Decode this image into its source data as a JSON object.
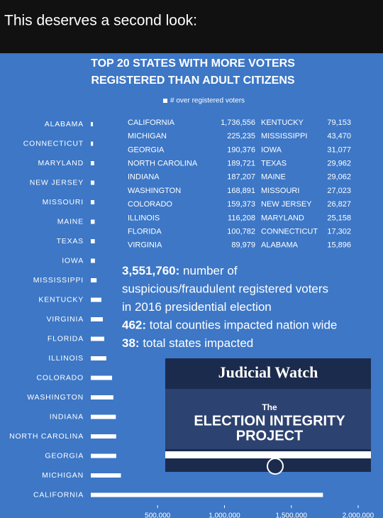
{
  "post": {
    "caption": "This deserves a second look:"
  },
  "chart_data": {
    "type": "bar",
    "orientation": "horizontal",
    "title": [
      "TOP 20 STATES WITH MORE VOTERS",
      "REGISTERED THAN ADULT CITIZENS"
    ],
    "categories": [
      "ALABAMA",
      "CONNECTICUT",
      "MARYLAND",
      "NEW JERSEY",
      "MISSOURI",
      "MAINE",
      "TEXAS",
      "IOWA",
      "MISSISSIPPI",
      "KENTUCKY",
      "VIRGINIA",
      "FLORIDA",
      "ILLINOIS",
      "COLORADO",
      "WASHINGTON",
      "INDIANA",
      "NORTH CAROLINA",
      "GEORGIA",
      "MICHIGAN",
      "CALIFORNIA"
    ],
    "series": [
      {
        "name": "# over registered voters",
        "color": "#ffffff",
        "values": [
          15896,
          17302,
          25158,
          26827,
          27023,
          29062,
          29962,
          31077,
          43470,
          79153,
          89979,
          100782,
          116208,
          159373,
          168891,
          187207,
          189721,
          190376,
          225235,
          1736556
        ]
      }
    ],
    "xlim": [
      0,
      2000000
    ],
    "xticks": [
      {
        "value": 500000,
        "label": "500,000"
      },
      {
        "value": 1000000,
        "label": "1,000,000"
      },
      {
        "value": 1500000,
        "label": "1,500,000"
      },
      {
        "value": 2000000,
        "label": "2,000,000"
      }
    ]
  },
  "table": {
    "rows": [
      [
        "CALIFORNIA",
        "1,736,556",
        "KENTUCKY",
        "79,153"
      ],
      [
        "MICHIGAN",
        "225,235",
        "MISSISSIPPI",
        "43,470"
      ],
      [
        "GEORGIA",
        "190,376",
        "IOWA",
        "31,077"
      ],
      [
        "NORTH CAROLINA",
        "189,721",
        "TEXAS",
        "29,962"
      ],
      [
        "INDIANA",
        "187,207",
        "MAINE",
        "29,062"
      ],
      [
        "WASHINGTON",
        "168,891",
        "MISSOURI",
        "27,023"
      ],
      [
        "COLORADO",
        "159,373",
        "NEW JERSEY",
        "26,827"
      ],
      [
        "ILLINOIS",
        "116,208",
        "MARYLAND",
        "25,158"
      ],
      [
        "FLORIDA",
        "100,782",
        "CONNECTICUT",
        "17,302"
      ],
      [
        "VIRGINIA",
        "89,979",
        "ALABAMA",
        "15,896"
      ]
    ]
  },
  "stats": [
    {
      "value": "3,551,760:",
      "lines": [
        "number of",
        "suspicious/fraudulent registered voters",
        "in 2016 presidential election"
      ]
    },
    {
      "value": "462:",
      "lines": [
        "total counties impacted nation wide"
      ]
    },
    {
      "value": "38:",
      "lines": [
        "total states impacted"
      ]
    }
  ],
  "banner": {
    "brand": "Judicial Watch",
    "kicker": "The",
    "title": [
      "ELECTION INTEGRITY",
      "PROJECT"
    ]
  }
}
